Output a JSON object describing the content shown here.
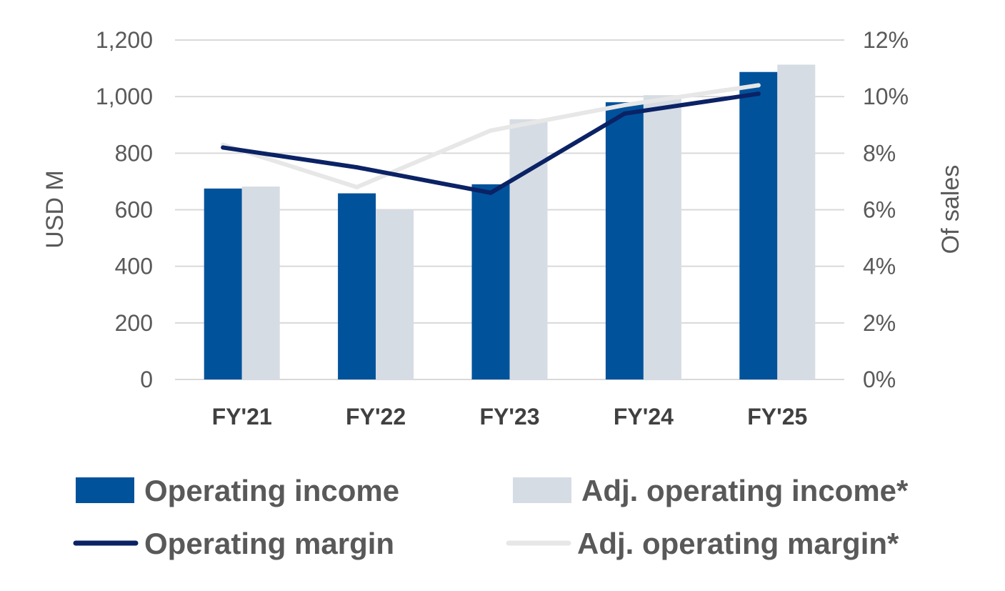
{
  "chart_data": {
    "type": "bar",
    "title": "",
    "xlabel": "",
    "ylabel": "USD M",
    "y2label": "Of sales",
    "categories": [
      "FY'21",
      "FY'22",
      "FY'23",
      "FY'24",
      "FY'25"
    ],
    "ylim": [
      0,
      1200
    ],
    "yticks": [
      0,
      200,
      400,
      600,
      800,
      1000,
      1200
    ],
    "ytick_labels": [
      "0",
      "200",
      "400",
      "600",
      "800",
      "1,000",
      "1,200"
    ],
    "y2lim": [
      0,
      12
    ],
    "y2ticks": [
      0,
      2,
      4,
      6,
      8,
      10,
      12
    ],
    "y2tick_labels": [
      "0%",
      "2%",
      "4%",
      "6%",
      "8%",
      "10%",
      "12%"
    ],
    "grid": true,
    "legend_position": "bottom",
    "series": [
      {
        "name": "Operating income",
        "type": "bar",
        "axis": "left",
        "color": "#00529b",
        "values": [
          675,
          658,
          690,
          980,
          1087
        ]
      },
      {
        "name": "Adj. operating income*",
        "type": "bar",
        "axis": "left",
        "color": "#d6dce4",
        "values": [
          682,
          600,
          920,
          1005,
          1113
        ]
      },
      {
        "name": "Operating margin",
        "type": "line",
        "axis": "right",
        "color": "#0b2265",
        "values": [
          8.2,
          7.5,
          6.6,
          9.4,
          10.1
        ]
      },
      {
        "name": "Adj. operating margin*",
        "type": "line",
        "axis": "right",
        "color": "#e7e7e7",
        "values": [
          8.3,
          6.8,
          8.8,
          9.7,
          10.4
        ]
      }
    ]
  }
}
